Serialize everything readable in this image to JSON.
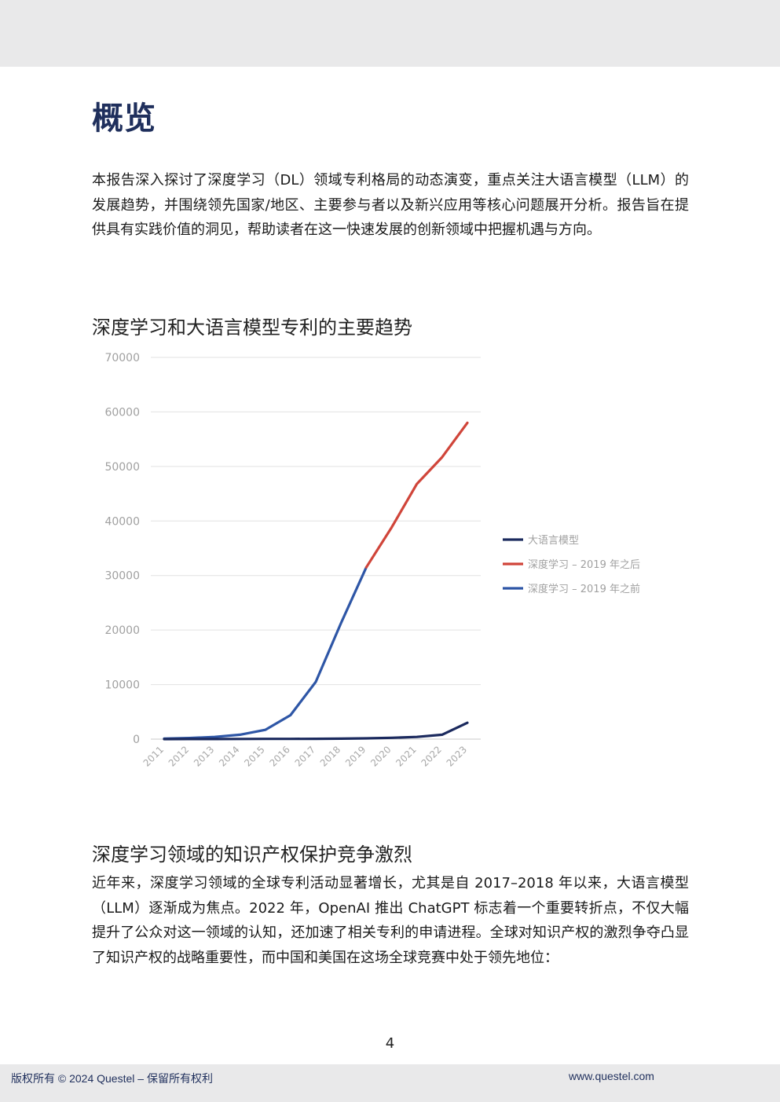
{
  "page": {
    "title": "概览",
    "intro": "本报告深入探讨了深度学习（DL）领域专利格局的动态演变，重点关注大语言模型（LLM）的发展趋势，并围绕领先国家/地区、主要参与者以及新兴应用等核心问题展开分析。报告旨在提供具有实践价值的洞见，帮助读者在这一快速发展的创新领域中把握机遇与方向。",
    "chart_heading": "深度学习和大语言模型专利的主要趋势",
    "section_heading": "深度学习领域的知识产权保护竞争激烈",
    "section_body": "近年来，深度学习领域的全球专利活动显著增长，尤其是自 2017–2018 年以来，大语言模型（LLM）逐渐成为焦点。2022 年，OpenAI 推出 ChatGPT 标志着一个重要转折点，不仅大幅提升了公众对这一领域的认知，还加速了相关专利的申请进程。全球对知识产权的激烈争夺凸显了知识产权的战略重要性，而中国和美国在这场全球竞赛中处于领先地位：",
    "page_number": "4",
    "footer_left": "版权所有 © 2024 Questel – 保留所有权利",
    "footer_right": "www.questel.com"
  },
  "chart_data": {
    "type": "line",
    "title": "",
    "xlabel": "",
    "ylabel": "",
    "x": [
      "2011",
      "2012",
      "2013",
      "2014",
      "2015",
      "2016",
      "2017",
      "2018",
      "2019",
      "2020",
      "2021",
      "2022",
      "2023"
    ],
    "ylim": [
      0,
      70000
    ],
    "yticks": [
      0,
      10000,
      20000,
      30000,
      40000,
      50000,
      60000,
      70000
    ],
    "grid": true,
    "legend_position": "right",
    "series": [
      {
        "name": "大语言模型",
        "color": "#1b2a5e",
        "values": [
          0,
          10,
          20,
          30,
          40,
          50,
          60,
          80,
          150,
          250,
          400,
          800,
          3000
        ]
      },
      {
        "name": "深度学习 – 2019 年之后",
        "color": "#d0453a",
        "values": [
          null,
          null,
          null,
          null,
          null,
          null,
          null,
          null,
          31500,
          38800,
          46800,
          51700,
          58000
        ]
      },
      {
        "name": "深度学习 – 2019 年之前",
        "color": "#2e56a6",
        "values": [
          100,
          200,
          400,
          800,
          1700,
          4400,
          10500,
          21300,
          31500,
          null,
          null,
          null,
          null
        ]
      }
    ]
  }
}
